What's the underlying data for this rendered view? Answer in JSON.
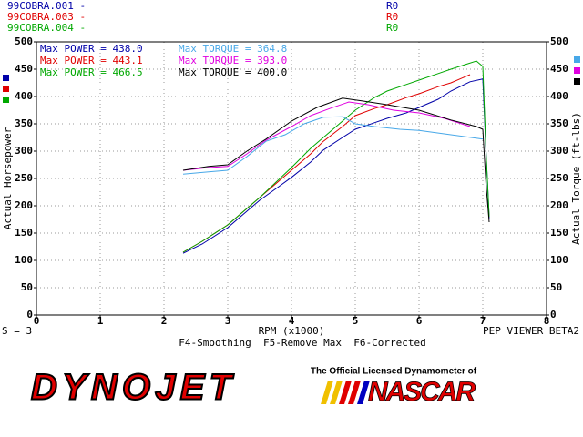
{
  "chart_data": {
    "type": "line",
    "files": [
      {
        "name": "99COBRA.001 -",
        "run": "R0",
        "color": "#0000a8"
      },
      {
        "name": "99COBRA.003 -",
        "run": "R0",
        "color": "#e00000"
      },
      {
        "name": "99COBRA.004 -",
        "run": "R0",
        "color": "#00a800"
      }
    ],
    "y_label": "Actual Horsepower",
    "y2_label": "Actual Torque (ft-lbs)",
    "x_label": "RPM (x1000)",
    "xlim": [
      0,
      8
    ],
    "xticks": [
      0,
      1,
      2,
      3,
      4,
      5,
      6,
      7,
      8
    ],
    "ylim": [
      0,
      500
    ],
    "yticks": [
      0,
      50,
      100,
      150,
      200,
      250,
      300,
      350,
      400,
      450,
      500
    ],
    "y2lim": [
      0,
      500
    ],
    "y2ticks": [
      0,
      50,
      100,
      150,
      200,
      250,
      300,
      350,
      400,
      450,
      500
    ],
    "grid": true,
    "series": [
      {
        "name": "Max POWER = 438.0",
        "color": "#0000a8",
        "axis": "y",
        "x": [
          2.3,
          2.6,
          3.0,
          3.3,
          3.5,
          3.8,
          4.0,
          4.3,
          4.5,
          4.8,
          5.0,
          5.3,
          5.5,
          5.8,
          6.0,
          6.3,
          6.5,
          6.8,
          7.0,
          7.05,
          7.1
        ],
        "values": [
          113,
          130,
          160,
          190,
          210,
          235,
          252,
          280,
          302,
          325,
          340,
          352,
          360,
          370,
          380,
          395,
          410,
          427,
          432,
          300,
          177
        ]
      },
      {
        "name": "Max POWER = 443.1",
        "color": "#e00000",
        "axis": "y",
        "x": [
          2.3,
          2.6,
          3.0,
          3.3,
          3.5,
          3.8,
          4.0,
          4.3,
          4.5,
          4.8,
          5.0,
          5.3,
          5.5,
          5.8,
          6.0,
          6.3,
          6.5,
          6.8
        ],
        "values": [
          115,
          135,
          165,
          195,
          215,
          245,
          265,
          295,
          318,
          345,
          365,
          378,
          385,
          398,
          405,
          418,
          425,
          440
        ]
      },
      {
        "name": "Max POWER = 466.5",
        "color": "#00a800",
        "axis": "y",
        "x": [
          2.3,
          2.6,
          3.0,
          3.3,
          3.5,
          3.8,
          4.0,
          4.3,
          4.5,
          4.8,
          5.0,
          5.3,
          5.5,
          5.8,
          6.0,
          6.3,
          6.5,
          6.9,
          7.0,
          7.05,
          7.1
        ],
        "values": [
          115,
          135,
          165,
          195,
          215,
          248,
          270,
          305,
          325,
          355,
          375,
          398,
          410,
          422,
          430,
          442,
          450,
          465,
          455,
          300,
          180
        ]
      },
      {
        "name": "Max TORQUE = 364.8",
        "color": "#48a8e8",
        "axis": "y2",
        "x": [
          2.3,
          2.7,
          3.0,
          3.3,
          3.6,
          3.9,
          4.2,
          4.5,
          4.8,
          5.0,
          5.3,
          5.7,
          6.0,
          6.5,
          7.0
        ],
        "values": [
          258,
          262,
          265,
          290,
          318,
          330,
          350,
          362,
          363,
          350,
          345,
          340,
          338,
          330,
          322
        ]
      },
      {
        "name": "Max TORQUE = 393.0",
        "color": "#e000e0",
        "axis": "y2",
        "x": [
          2.3,
          2.7,
          3.0,
          3.3,
          3.6,
          4.0,
          4.3,
          4.6,
          4.9,
          5.2,
          5.6,
          6.0,
          6.4,
          6.8
        ],
        "values": [
          265,
          270,
          272,
          295,
          320,
          345,
          365,
          378,
          390,
          385,
          375,
          370,
          360,
          345
        ]
      },
      {
        "name": "Max TORQUE = 400.0",
        "color": "#000000",
        "axis": "y2",
        "x": [
          2.3,
          2.7,
          3.0,
          3.3,
          3.6,
          4.0,
          4.4,
          4.8,
          5.1,
          5.5,
          6.0,
          6.5,
          6.9,
          7.0,
          7.05,
          7.1
        ],
        "values": [
          265,
          272,
          275,
          300,
          322,
          355,
          380,
          397,
          392,
          385,
          375,
          357,
          345,
          340,
          240,
          170
        ]
      }
    ],
    "status_left": "S = 3",
    "status_right": "PEP VIEWER BETA2",
    "function_keys": "F4-Smoothing  F5-Remove Max  F6-Corrected",
    "brand": "DYNOJET",
    "tagline": "The Official Licensed Dynamometer of",
    "partner": "NASCAR"
  }
}
